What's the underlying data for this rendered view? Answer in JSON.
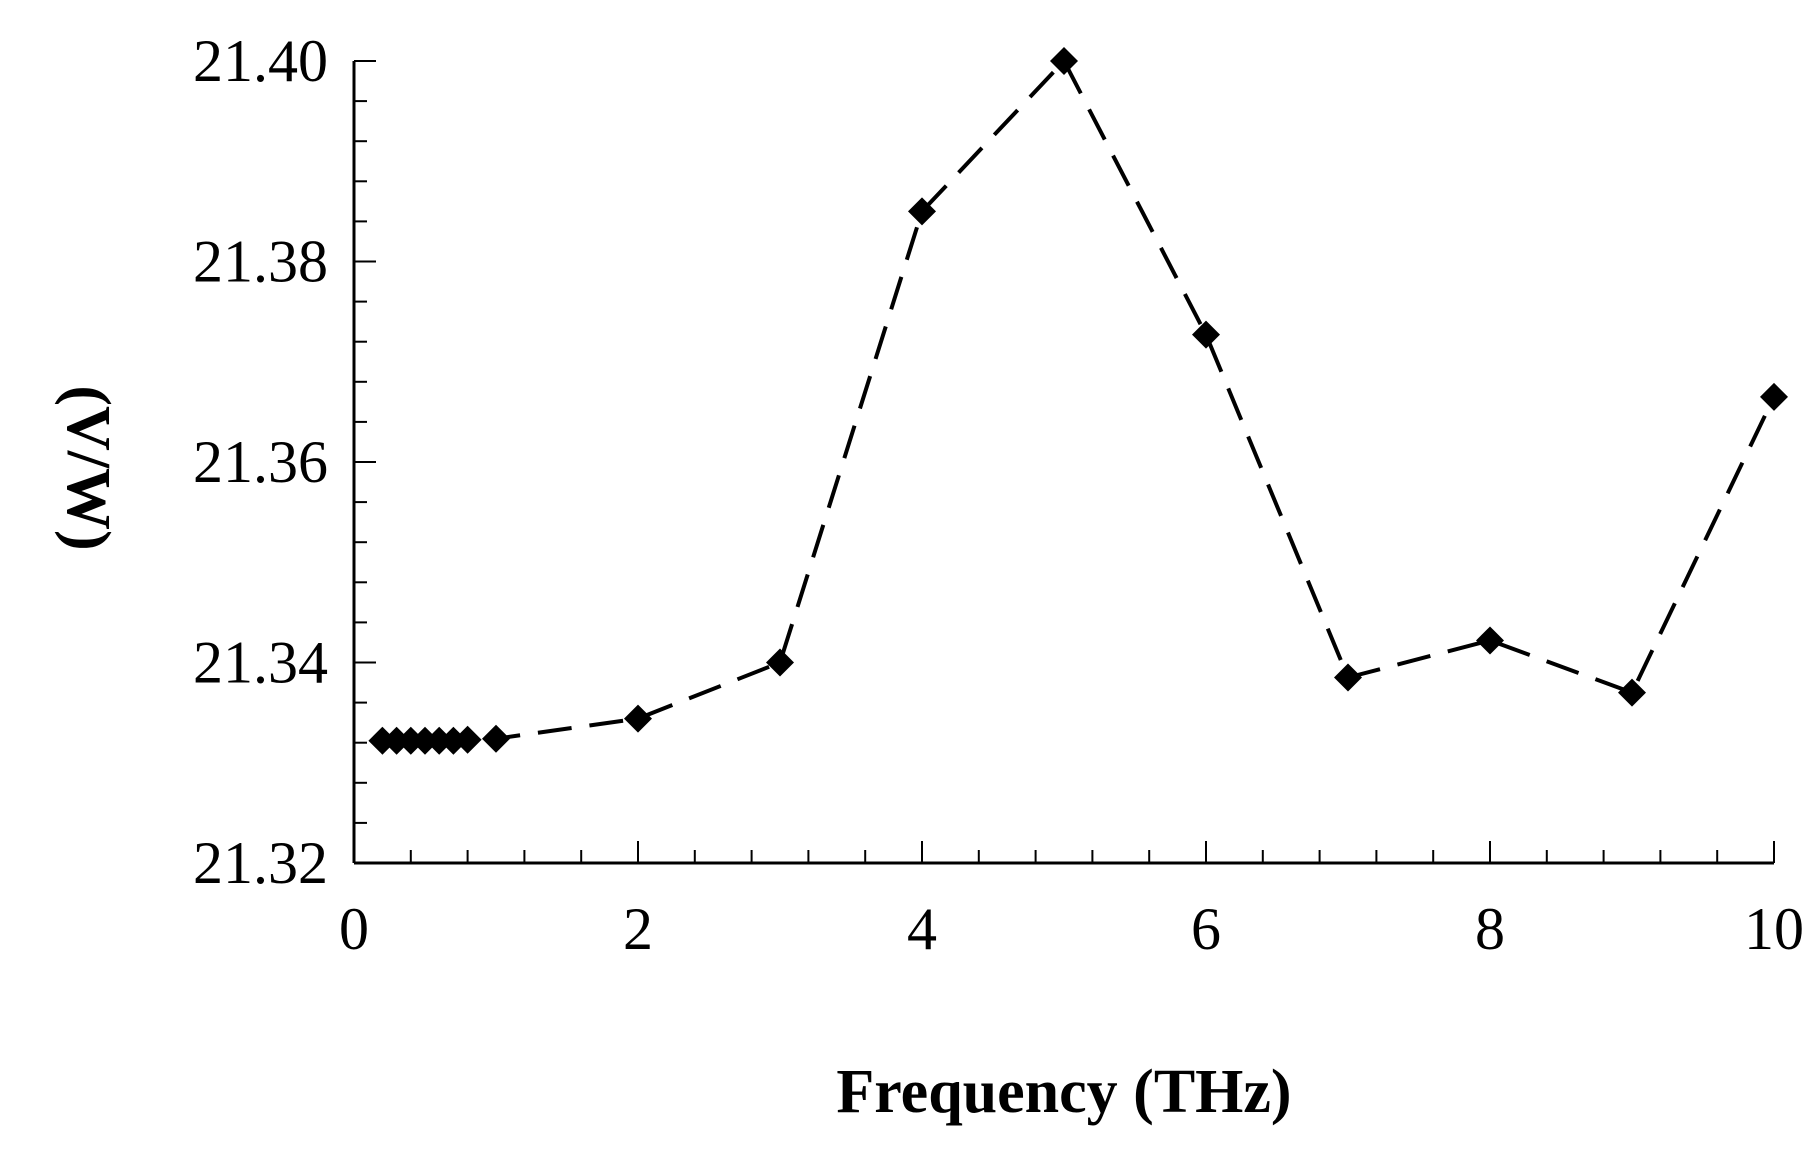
{
  "chart_data": {
    "type": "line",
    "title": "",
    "xlabel": "Frequency (THz)",
    "ylabel": "(V/W)",
    "xlim": [
      0,
      10
    ],
    "ylim": [
      21.32,
      21.4
    ],
    "x_ticks": [
      0,
      2,
      4,
      6,
      8,
      10
    ],
    "x_tick_labels": [
      "0",
      "2",
      "4",
      "6",
      "8",
      "10"
    ],
    "y_ticks": [
      21.32,
      21.34,
      21.36,
      21.38,
      21.4
    ],
    "y_tick_labels": [
      "21.32",
      "21.34",
      "21.36",
      "21.38",
      "21.40"
    ],
    "grid": false,
    "line_style": "dashed",
    "marker": "diamond",
    "line_color": "#000000",
    "series": [
      {
        "x": [
          0.2,
          0.3,
          0.4,
          0.5,
          0.6,
          0.7,
          0.8,
          1,
          2,
          3,
          4,
          5,
          6,
          7,
          8,
          9,
          10
        ],
        "y": [
          21.3322,
          21.3322,
          21.3322,
          21.3322,
          21.3322,
          21.3322,
          21.3323,
          21.3324,
          21.3344,
          21.34,
          21.385,
          21.4,
          21.3727,
          21.3385,
          21.3422,
          21.337,
          21.3665
        ]
      }
    ]
  }
}
